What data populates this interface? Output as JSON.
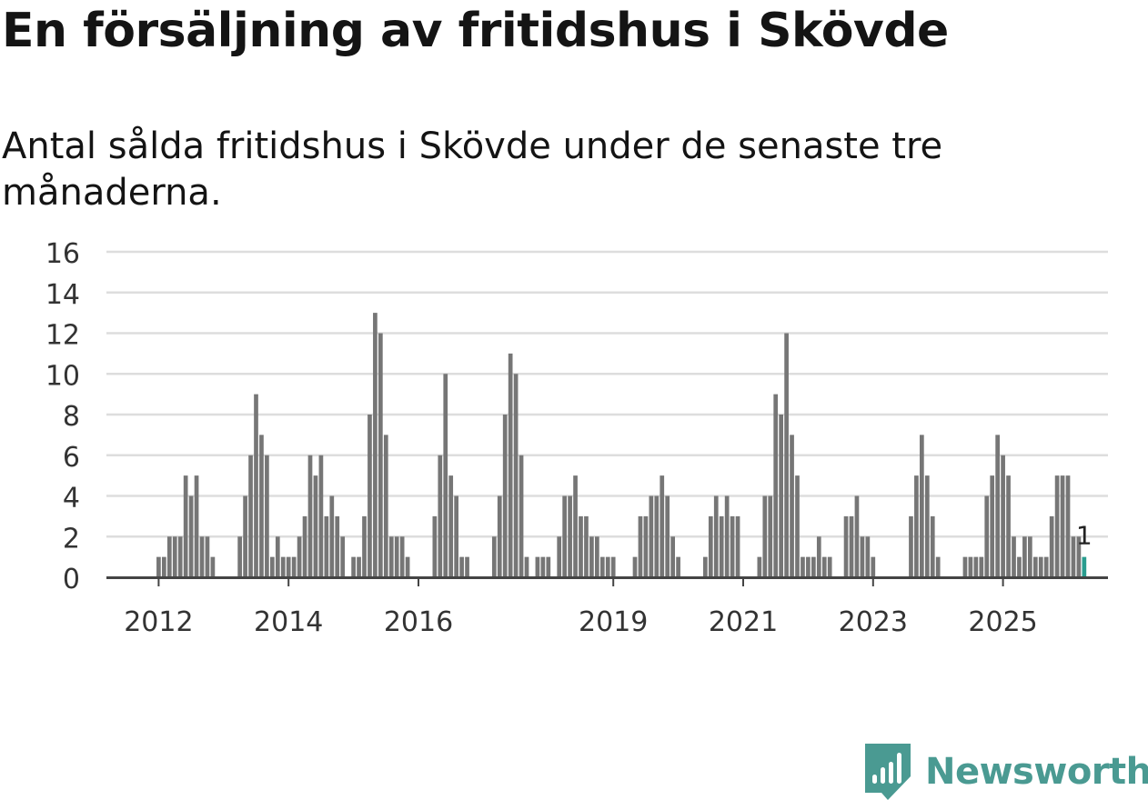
{
  "title": "En försäljning av fritidshus i Skövde",
  "subtitle": "Antal sålda fritidshus i Skövde under de senaste tre månaderna.",
  "brand": {
    "name": "Newsworthy"
  },
  "colors": {
    "bar": "#767676",
    "highlight": "#2a9d8f",
    "grid": "#dddddd",
    "axis": "#444444",
    "brand": "#4a9a92"
  },
  "chart_data": {
    "type": "bar",
    "title": "En försäljning av fritidshus i Skövde",
    "xlabel": "",
    "ylabel": "",
    "ylim": [
      0,
      16
    ],
    "yticks": [
      "0",
      "2",
      "4",
      "6",
      "8",
      "10",
      "12",
      "14",
      "16"
    ],
    "xtick_labels": [
      {
        "label": "2012",
        "index": 9
      },
      {
        "label": "2014",
        "index": 33
      },
      {
        "label": "2016",
        "index": 57
      },
      {
        "label": "2019",
        "index": 93
      },
      {
        "label": "2021",
        "index": 117
      },
      {
        "label": "2023",
        "index": 141
      },
      {
        "label": "2025",
        "index": 165
      }
    ],
    "start": "2011-03",
    "frequency": "monthly",
    "values": [
      0,
      0,
      0,
      0,
      0,
      0,
      0,
      0,
      0,
      1,
      1,
      2,
      2,
      2,
      5,
      4,
      5,
      2,
      2,
      1,
      0,
      0,
      0,
      0,
      2,
      4,
      6,
      9,
      7,
      6,
      1,
      2,
      1,
      1,
      1,
      2,
      3,
      6,
      5,
      6,
      3,
      4,
      3,
      2,
      0,
      1,
      1,
      3,
      8,
      13,
      12,
      7,
      2,
      2,
      2,
      1,
      0,
      0,
      0,
      0,
      3,
      6,
      10,
      5,
      4,
      1,
      1,
      0,
      0,
      0,
      0,
      2,
      4,
      8,
      11,
      10,
      6,
      1,
      0,
      1,
      1,
      1,
      0,
      2,
      4,
      4,
      5,
      3,
      3,
      2,
      2,
      1,
      1,
      1,
      0,
      0,
      0,
      1,
      3,
      3,
      4,
      4,
      5,
      4,
      2,
      1,
      0,
      0,
      0,
      0,
      1,
      3,
      4,
      3,
      4,
      3,
      3,
      0,
      0,
      0,
      1,
      4,
      4,
      9,
      8,
      12,
      7,
      5,
      1,
      1,
      1,
      2,
      1,
      1,
      0,
      0,
      3,
      3,
      4,
      2,
      2,
      1,
      0,
      0,
      0,
      0,
      0,
      0,
      3,
      5,
      7,
      5,
      3,
      1,
      0,
      0,
      0,
      0,
      1,
      1,
      1,
      1,
      4,
      5,
      7,
      6,
      5,
      2,
      1,
      2,
      2,
      1,
      1,
      1,
      3,
      5,
      5,
      5,
      2,
      2,
      1
    ],
    "highlight_label": "1"
  }
}
